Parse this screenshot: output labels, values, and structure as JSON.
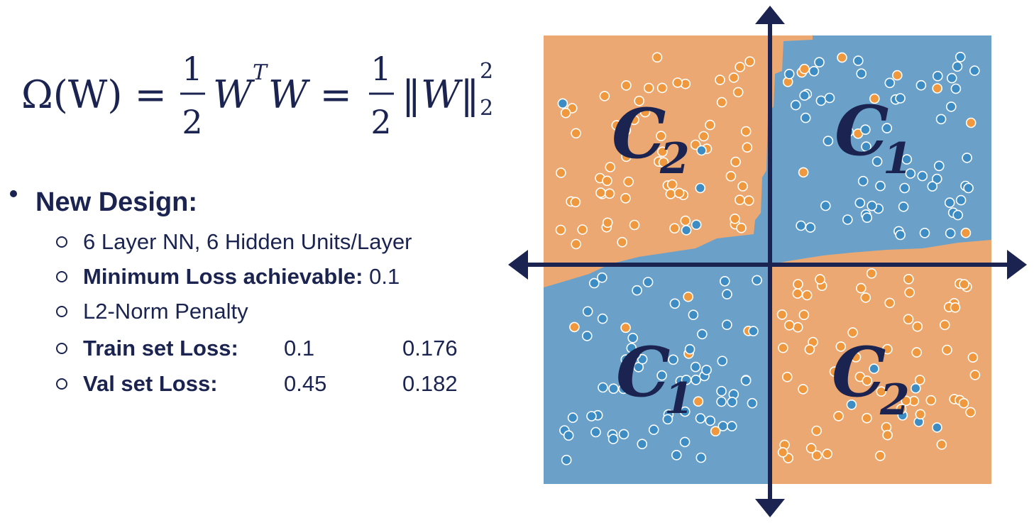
{
  "formula": {
    "lhs": "Ω(W) =",
    "frac1": {
      "num": "1",
      "den": "2"
    },
    "term1": "W",
    "term1_sup": "T",
    "term1_rest": "W =",
    "frac2": {
      "num": "1",
      "den": "2"
    },
    "norm": "‖W‖",
    "norm_sup": "2",
    "norm_sub": "2"
  },
  "bullet": {
    "title": "New Design:",
    "items": [
      {
        "text": "6 Layer NN, 6 Hidden Units/Layer"
      },
      {
        "label": "Minimum Loss achievable:",
        "value": "0.1"
      },
      {
        "text": "L2-Norm Penalty"
      },
      {
        "label": "Train set Loss:",
        "values": [
          "0.1",
          "0.176"
        ]
      },
      {
        "label": "Val set Loss:",
        "values": [
          "0.45",
          "0.182"
        ]
      }
    ]
  },
  "diagram": {
    "labels": [
      {
        "letter": "C",
        "sub": "2"
      },
      {
        "letter": "C",
        "sub": "1"
      },
      {
        "letter": "C",
        "sub": "1"
      },
      {
        "letter": "C",
        "sub": "2"
      }
    ]
  }
}
